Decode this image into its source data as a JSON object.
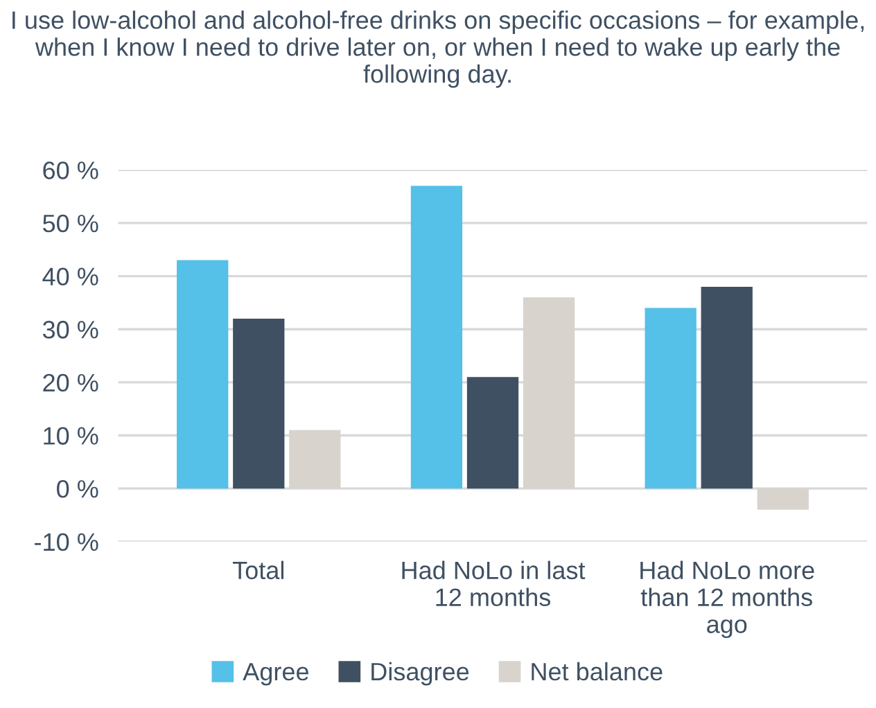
{
  "chart_data": {
    "type": "bar",
    "title": "I use low-alcohol and alcohol-free drinks on specific occasions – for example, when I know I need to drive later on, or when I need to wake up early the following day.",
    "categories": [
      "Total",
      "Had NoLo in last\n12 months",
      "Had NoLo more\nthan 12 months\nago"
    ],
    "series": [
      {
        "name": "Agree",
        "color": "#55c0e8",
        "values": [
          43,
          57,
          34
        ]
      },
      {
        "name": "Disagree",
        "color": "#3f5062",
        "values": [
          32,
          21,
          38
        ]
      },
      {
        "name": "Net balance",
        "color": "#d8d3cd",
        "values": [
          11,
          36,
          -4
        ]
      }
    ],
    "ylim": [
      -10,
      60
    ],
    "yticks": [
      {
        "value": -10,
        "label": "-10 %"
      },
      {
        "value": 0,
        "label": "0 %"
      },
      {
        "value": 10,
        "label": "10 %"
      },
      {
        "value": 20,
        "label": "20 %"
      },
      {
        "value": 30,
        "label": "30 %"
      },
      {
        "value": 40,
        "label": "40 %"
      },
      {
        "value": 50,
        "label": "50 %"
      },
      {
        "value": 60,
        "label": "60 %"
      }
    ],
    "grid": "y",
    "legend": "bottom"
  }
}
